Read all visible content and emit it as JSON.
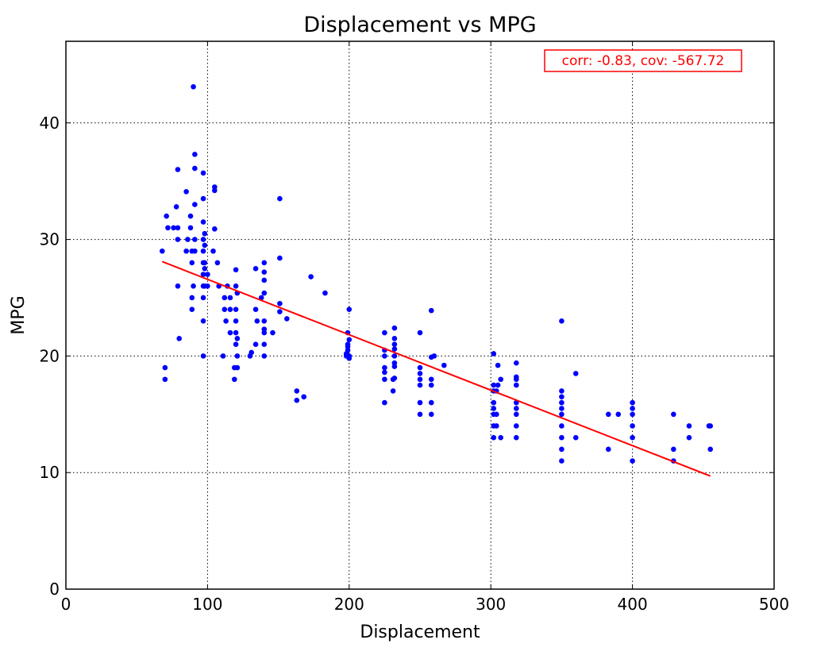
{
  "chart_data": {
    "type": "scatter",
    "title": "Displacement vs MPG",
    "xlabel": "Displacement",
    "ylabel": "MPG",
    "xlim": [
      0,
      500
    ],
    "ylim": [
      0,
      47
    ],
    "xticks": [
      0,
      100,
      200,
      300,
      400,
      500
    ],
    "yticks": [
      0,
      10,
      20,
      30,
      40
    ],
    "grid": true,
    "annotation": "corr: -0.83, cov: -567.72",
    "colors": {
      "points": "#0000ff",
      "fit_line": "#ff0000",
      "annotation": "#ff0000"
    },
    "fit_line": {
      "x": [
        68,
        455
      ],
      "y": [
        28.1,
        9.7
      ]
    },
    "points": [
      [
        68,
        29
      ],
      [
        70,
        18
      ],
      [
        70,
        19
      ],
      [
        71,
        32
      ],
      [
        72,
        31
      ],
      [
        76,
        31
      ],
      [
        78,
        32.8
      ],
      [
        79,
        26
      ],
      [
        79,
        30
      ],
      [
        79,
        31
      ],
      [
        79,
        36
      ],
      [
        80,
        21.5
      ],
      [
        85,
        29
      ],
      [
        85,
        34.1
      ],
      [
        86,
        30
      ],
      [
        88,
        31
      ],
      [
        88,
        32
      ],
      [
        89,
        24
      ],
      [
        89,
        25
      ],
      [
        89,
        28
      ],
      [
        89,
        29
      ],
      [
        90,
        43.1
      ],
      [
        90,
        26
      ],
      [
        91,
        30
      ],
      [
        91,
        33
      ],
      [
        91,
        36.1
      ],
      [
        91,
        37.3
      ],
      [
        91,
        29
      ],
      [
        97,
        20
      ],
      [
        97,
        23
      ],
      [
        97,
        25
      ],
      [
        97,
        26
      ],
      [
        97,
        27
      ],
      [
        97,
        28
      ],
      [
        97,
        29
      ],
      [
        97,
        30
      ],
      [
        97,
        31.5
      ],
      [
        97,
        33.5
      ],
      [
        97,
        35.7
      ],
      [
        98,
        29.5
      ],
      [
        98,
        26
      ],
      [
        98,
        30.5
      ],
      [
        98,
        27.5
      ],
      [
        98,
        28
      ],
      [
        100,
        26
      ],
      [
        100,
        27
      ],
      [
        104,
        29
      ],
      [
        105,
        30.9
      ],
      [
        105,
        34.2
      ],
      [
        105,
        34.5
      ],
      [
        107,
        28
      ],
      [
        108,
        26
      ],
      [
        111,
        20
      ],
      [
        112,
        24
      ],
      [
        112,
        25
      ],
      [
        113,
        23
      ],
      [
        114,
        26
      ],
      [
        116,
        22
      ],
      [
        116,
        24
      ],
      [
        116,
        25
      ],
      [
        119,
        19
      ],
      [
        119,
        18
      ],
      [
        120,
        21
      ],
      [
        120,
        22
      ],
      [
        120,
        23
      ],
      [
        120,
        24
      ],
      [
        120,
        26
      ],
      [
        120,
        27.4
      ],
      [
        121,
        25.4
      ],
      [
        121,
        19
      ],
      [
        121,
        20
      ],
      [
        121,
        21.5
      ],
      [
        130,
        20
      ],
      [
        131,
        20.3
      ],
      [
        134,
        21
      ],
      [
        134,
        24
      ],
      [
        134,
        27.5
      ],
      [
        135,
        23
      ],
      [
        138,
        25
      ],
      [
        140,
        20
      ],
      [
        140,
        21
      ],
      [
        140,
        22
      ],
      [
        140,
        22.3
      ],
      [
        140,
        23
      ],
      [
        140,
        25.4
      ],
      [
        140,
        26.5
      ],
      [
        140,
        27.2
      ],
      [
        140,
        28
      ],
      [
        146,
        22
      ],
      [
        151,
        23.8
      ],
      [
        151,
        24.5
      ],
      [
        151,
        28.4
      ],
      [
        151,
        33.5
      ],
      [
        156,
        23.2
      ],
      [
        163,
        16.2
      ],
      [
        163,
        17
      ],
      [
        168,
        16.5
      ],
      [
        173,
        26.8
      ],
      [
        183,
        25.4
      ],
      [
        198,
        20
      ],
      [
        198,
        20.2
      ],
      [
        199,
        21
      ],
      [
        199,
        20.5
      ],
      [
        199,
        20.8
      ],
      [
        199,
        22
      ],
      [
        200,
        19.8
      ],
      [
        200,
        20
      ],
      [
        200,
        24
      ],
      [
        200,
        21.4
      ],
      [
        225,
        16
      ],
      [
        225,
        18
      ],
      [
        225,
        18.6
      ],
      [
        225,
        19
      ],
      [
        225,
        20
      ],
      [
        225,
        20.5
      ],
      [
        225,
        22
      ],
      [
        231,
        17
      ],
      [
        231,
        18
      ],
      [
        232,
        18.1
      ],
      [
        232,
        19.1
      ],
      [
        232,
        19.4
      ],
      [
        232,
        20
      ],
      [
        232,
        20.6
      ],
      [
        232,
        21
      ],
      [
        232,
        21.5
      ],
      [
        232,
        22.4
      ],
      [
        250,
        15
      ],
      [
        250,
        16
      ],
      [
        250,
        17.5
      ],
      [
        250,
        18
      ],
      [
        250,
        18.5
      ],
      [
        250,
        19
      ],
      [
        250,
        22
      ],
      [
        258,
        15
      ],
      [
        258,
        16
      ],
      [
        258,
        17.5
      ],
      [
        258,
        18
      ],
      [
        258,
        19.9
      ],
      [
        258,
        23.9
      ],
      [
        260,
        20
      ],
      [
        267,
        19.2
      ],
      [
        302,
        13
      ],
      [
        302,
        14
      ],
      [
        302,
        15
      ],
      [
        302,
        15.5
      ],
      [
        302,
        16
      ],
      [
        302,
        17
      ],
      [
        302,
        17.5
      ],
      [
        302,
        20.2
      ],
      [
        304,
        17
      ],
      [
        304,
        15
      ],
      [
        304,
        14
      ],
      [
        305,
        17.5
      ],
      [
        305,
        19.2
      ],
      [
        307,
        13
      ],
      [
        307,
        18
      ],
      [
        318,
        13
      ],
      [
        318,
        14
      ],
      [
        318,
        15
      ],
      [
        318,
        15.5
      ],
      [
        318,
        16
      ],
      [
        318,
        17.5
      ],
      [
        318,
        18
      ],
      [
        318,
        18.2
      ],
      [
        318,
        19.4
      ],
      [
        350,
        11
      ],
      [
        350,
        12
      ],
      [
        350,
        13
      ],
      [
        350,
        14
      ],
      [
        350,
        15
      ],
      [
        350,
        15.5
      ],
      [
        350,
        16
      ],
      [
        350,
        16.5
      ],
      [
        350,
        17
      ],
      [
        350,
        23
      ],
      [
        360,
        13
      ],
      [
        360,
        18.5
      ],
      [
        383,
        12
      ],
      [
        383,
        15
      ],
      [
        390,
        15
      ],
      [
        400,
        11
      ],
      [
        400,
        13
      ],
      [
        400,
        14
      ],
      [
        400,
        15
      ],
      [
        400,
        15.5
      ],
      [
        400,
        16
      ],
      [
        429,
        11
      ],
      [
        429,
        12
      ],
      [
        429,
        15
      ],
      [
        440,
        13
      ],
      [
        440,
        14
      ],
      [
        454,
        14
      ],
      [
        455,
        12
      ],
      [
        455,
        14
      ]
    ]
  }
}
